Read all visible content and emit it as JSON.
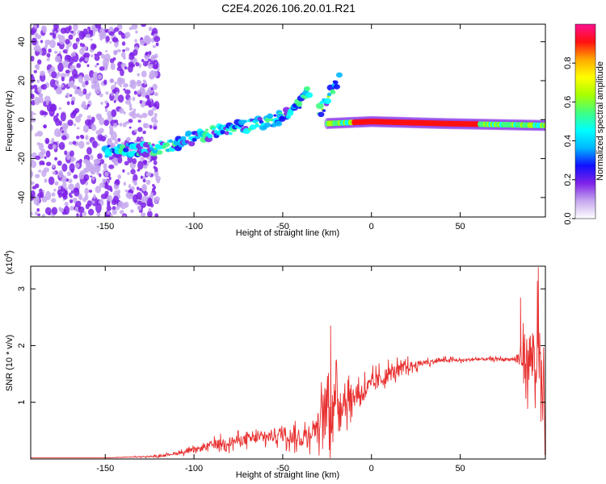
{
  "title": "C2E4.2026.106.20.01.R21",
  "chart_data": [
    {
      "type": "heatmap",
      "xlabel": "Height of straight line (km)",
      "ylabel": "Frequency (Hz)",
      "xlim": [
        -192,
        98
      ],
      "ylim": [
        -50,
        49
      ],
      "x_ticks": [
        -150,
        -100,
        -50,
        0,
        50
      ],
      "y_ticks": [
        -40,
        -20,
        0,
        20,
        40
      ],
      "colorbar": {
        "label": "Normalized spectral amplitude",
        "range": [
          0,
          1
        ],
        "ticks": [
          "0.0",
          "0.2",
          "0.4",
          "0.6",
          "0.8"
        ],
        "colors": [
          "#ffffff",
          "#c6a8ee",
          "#7e22e8",
          "#1010ff",
          "#00b8ff",
          "#00ffff",
          "#40ff80",
          "#a8ff00",
          "#ffff00",
          "#ffaa00",
          "#ff1010",
          "#ff1090"
        ]
      },
      "features": [
        {
          "segment": "noisy-background",
          "x": [
            -192,
            -120
          ],
          "y": [
            -50,
            49
          ],
          "amplitude": 0.2
        },
        {
          "segment": "rising-track",
          "points": [
            [
              -150,
              -16
            ],
            [
              -125,
              -15
            ],
            [
              -112,
              -13
            ],
            [
              -100,
              -9
            ],
            [
              -85,
              -6
            ],
            [
              -70,
              -3
            ],
            [
              -55,
              0
            ],
            [
              -45,
              4
            ],
            [
              -40,
              10
            ],
            [
              -35,
              15
            ]
          ],
          "amplitude": 0.45
        },
        {
          "segment": "branch",
          "points": [
            [
              -30,
              4
            ],
            [
              -25,
              10
            ],
            [
              -20,
              18
            ],
            [
              -18,
              22
            ]
          ],
          "amplitude": 0.5
        },
        {
          "segment": "stable-line",
          "points": [
            [
              -25,
              -2
            ],
            [
              0,
              -1
            ],
            [
              40,
              -2
            ],
            [
              98,
              -3
            ]
          ],
          "amplitude": 0.9
        }
      ]
    },
    {
      "type": "line",
      "xlabel": "Height of straight line (km)",
      "ylabel": "SNR (10 * v/v)",
      "y_multiplier": "(x10",
      "y_multiplier_exp": "4",
      "multiplier_suffix": ")",
      "xlim": [
        -192,
        98
      ],
      "ylim": [
        0,
        3.4
      ],
      "x_ticks": [
        -150,
        -100,
        -50,
        0,
        50
      ],
      "y_ticks": [
        1,
        2,
        3
      ],
      "color": "#e83030",
      "series": [
        {
          "x": [
            -192,
            -150,
            -120,
            -110,
            -100,
            -90,
            -80,
            -70,
            -60,
            -50,
            -40,
            -30,
            -25,
            -20,
            -10,
            0,
            10,
            20,
            30,
            40,
            50,
            60,
            70,
            80,
            88,
            92,
            95,
            98
          ],
          "y": [
            0.02,
            0.02,
            0.05,
            0.1,
            0.15,
            0.25,
            0.3,
            0.35,
            0.38,
            0.45,
            0.35,
            0.6,
            0.9,
            1.0,
            1.1,
            1.3,
            1.5,
            1.62,
            1.7,
            1.74,
            1.74,
            1.76,
            1.76,
            1.76,
            1.78,
            1.8,
            1.5,
            0.5
          ],
          "noise": [
            0,
            0,
            0.03,
            0.05,
            0.1,
            0.15,
            0.2,
            0.2,
            0.22,
            0.3,
            0.3,
            0.5,
            1.3,
            0.8,
            0.45,
            0.35,
            0.3,
            0.2,
            0.1,
            0.08,
            0.06,
            0.06,
            0.06,
            0.06,
            0.9,
            1.5,
            1.6,
            1.2
          ]
        }
      ],
      "peaks": [
        {
          "x": -23,
          "y": 2.35
        },
        {
          "x": 84,
          "y": 2.85
        },
        {
          "x": 94,
          "y": 3.38
        }
      ]
    }
  ]
}
